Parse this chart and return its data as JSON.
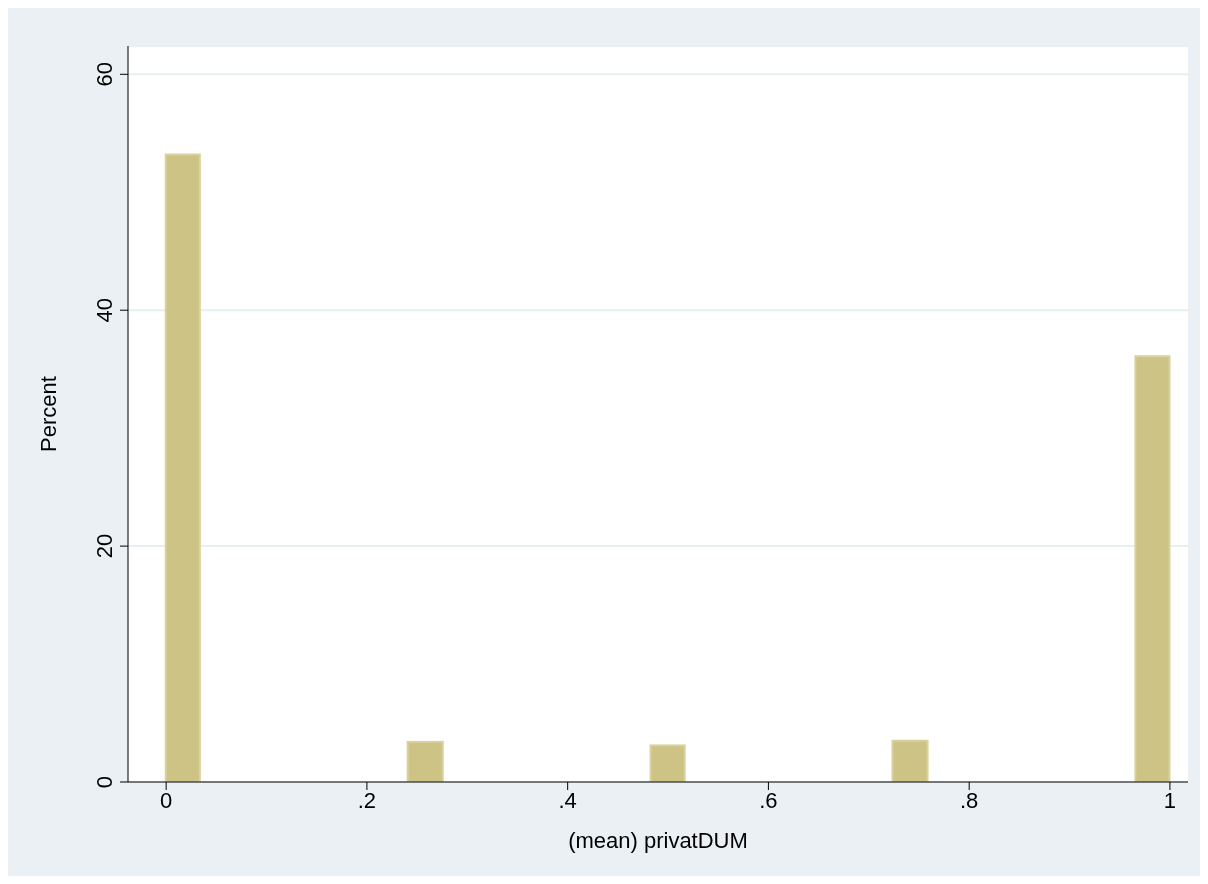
{
  "chart_data": {
    "type": "histogram",
    "xlabel": "(mean) privatDUM",
    "ylabel": "Percent",
    "bins": [
      0,
      0.034,
      0.241,
      0.276,
      0.483,
      0.517,
      0.724,
      0.759,
      0.966,
      1
    ],
    "values": [
      53.2,
      0,
      3.4,
      0,
      3.1,
      0,
      3.5,
      0,
      36.1
    ],
    "color": "#cdc385",
    "xlim": [
      -0.038,
      1.018
    ],
    "xticks": [
      0,
      {
        "value": 0.2,
        "label": ".2"
      },
      {
        "value": 0.4,
        "label": ".4"
      },
      {
        "value": 0.6,
        "label": ".6"
      },
      {
        "value": 0.8,
        "label": ".8"
      },
      1
    ],
    "ylim": [
      0,
      62.4
    ],
    "yticks": [
      0,
      20,
      40,
      60
    ],
    "grid": "y"
  }
}
